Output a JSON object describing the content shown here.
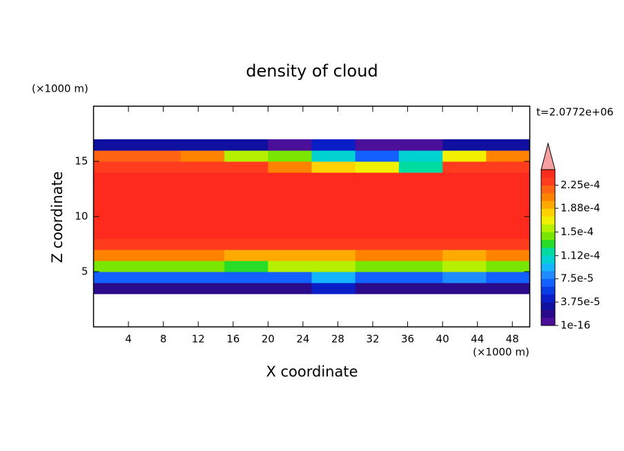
{
  "chart_data": {
    "type": "contour",
    "title": "density of cloud",
    "x_label": "X coordinate",
    "y_label": "Z coordinate",
    "x_unit": "(×1000 m)",
    "y_unit": "(×1000 m)",
    "time_label": "t=2.0772e+06",
    "xlim": [
      0,
      50
    ],
    "ylim": [
      0,
      20
    ],
    "xticks": [
      4,
      8,
      12,
      16,
      20,
      24,
      28,
      32,
      36,
      40,
      44,
      48
    ],
    "yticks": [
      5,
      10,
      15
    ],
    "x": [
      2.5,
      7.5,
      12.5,
      17.5,
      22.5,
      27.5,
      32.5,
      37.5,
      42.5,
      47.5
    ],
    "y": [
      3.5,
      4.5,
      5.5,
      6.5,
      7.5,
      8.5,
      9.5,
      10.5,
      11.5,
      12.5,
      13.5,
      14.5,
      15.5,
      16.5
    ],
    "z": [
      [
        1.5e-05,
        1.5e-05,
        1.5e-05,
        1.5e-05,
        2e-05,
        4e-05,
        1.5e-05,
        1.5e-05,
        1.5e-05,
        1.5e-05
      ],
      [
        7e-05,
        7e-05,
        7e-05,
        6.5e-05,
        7e-05,
        9e-05,
        7e-05,
        7e-05,
        8e-05,
        7e-05
      ],
      [
        0.000145,
        0.000145,
        0.00014,
        0.00013,
        0.00015,
        0.00016,
        0.00014,
        0.00014,
        0.00015,
        0.000145
      ],
      [
        0.0002,
        0.0002,
        0.0002,
        0.000195,
        0.00019,
        0.00019,
        0.0002,
        0.0002,
        0.00019,
        0.0002
      ],
      [
        0.00023,
        0.00023,
        0.00023,
        0.00023,
        0.00023,
        0.00023,
        0.00023,
        0.00023,
        0.00023,
        0.00023
      ],
      [
        0.00024,
        0.00024,
        0.00024,
        0.00024,
        0.00024,
        0.00024,
        0.00024,
        0.00024,
        0.00024,
        0.00024
      ],
      [
        0.000245,
        0.000245,
        0.000245,
        0.000245,
        0.000245,
        0.000245,
        0.000245,
        0.000245,
        0.000245,
        0.000245
      ],
      [
        0.000245,
        0.000245,
        0.000245,
        0.000245,
        0.000245,
        0.000245,
        0.000245,
        0.000245,
        0.000245,
        0.000245
      ],
      [
        0.000245,
        0.000245,
        0.000245,
        0.000245,
        0.000245,
        0.000245,
        0.000245,
        0.000245,
        0.000245,
        0.000245
      ],
      [
        0.000245,
        0.000245,
        0.000245,
        0.000245,
        0.000245,
        0.000245,
        0.000245,
        0.000245,
        0.000245,
        0.000245
      ],
      [
        0.000245,
        0.000245,
        0.000245,
        0.000245,
        0.000245,
        0.000245,
        0.000245,
        0.000245,
        0.000245,
        0.000245
      ],
      [
        0.000235,
        0.000235,
        0.000235,
        0.00023,
        0.0002,
        0.00018,
        0.00017,
        0.00012,
        0.00023,
        0.000235
      ],
      [
        0.000215,
        0.000215,
        0.000205,
        0.00016,
        0.00014,
        0.0001,
        7e-05,
        0.00011,
        0.00017,
        0.00021
      ],
      [
        3e-05,
        3e-05,
        3e-05,
        3e-05,
        1e-05,
        4e-05,
        1e-05,
        1e-05,
        3e-05,
        3e-05
      ]
    ],
    "colorbar": {
      "levels": [
        1e-16,
        1.25e-05,
        2.5e-05,
        3.75e-05,
        5e-05,
        6.25e-05,
        7.5e-05,
        8.75e-05,
        0.0001,
        0.0001125,
        0.000125,
        0.0001375,
        0.00015,
        0.0001625,
        0.000175,
        0.0001875,
        0.0002,
        0.0002125,
        0.000225,
        0.0002375,
        0.00025
      ],
      "colors": [
        "#4b0f9a",
        "#2a0a8a",
        "#1010a0",
        "#0a1ec8",
        "#0a3ce6",
        "#1460ff",
        "#1e8cff",
        "#14b4ff",
        "#00d2d2",
        "#00dca0",
        "#28dc28",
        "#78e600",
        "#b4f000",
        "#f0f000",
        "#ffd200",
        "#ffaa00",
        "#ff8200",
        "#ff6414",
        "#ff3c1e",
        "#ff2a1e"
      ],
      "over_color": "#f4a0a0",
      "ticks": [
        {
          "value": 1e-16,
          "label": "1e-16"
        },
        {
          "value": 3.75e-05,
          "label": "3.75e-5"
        },
        {
          "value": 7.5e-05,
          "label": "7.5e-5"
        },
        {
          "value": 0.000112,
          "label": "1.12e-4"
        },
        {
          "value": 0.00015,
          "label": "1.5e-4"
        },
        {
          "value": 0.000188,
          "label": "1.88e-4"
        },
        {
          "value": 0.000225,
          "label": "2.25e-4"
        }
      ]
    }
  }
}
